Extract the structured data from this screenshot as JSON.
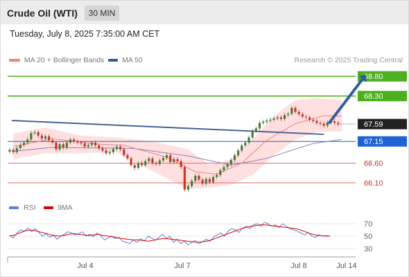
{
  "header": {
    "title": "Crude Oil (WTI)",
    "timeframe": "30 MIN"
  },
  "subheader": {
    "datetime": "Tuesday, July 8, 2025 7:35:00 AM CET"
  },
  "legend": {
    "ma20": "MA 20 + Bollinger Bands",
    "ma50": "MA 50",
    "credit": "Research © 2025 Trading Central"
  },
  "rsi_legend": {
    "rsi": "RSI",
    "ma9": "9MA"
  },
  "colors": {
    "target_line": "#4caf1f",
    "pivot_line": "#2f5d9e",
    "support_line": "#e06666",
    "current_price": "#222222",
    "bollinger_fill": "#ffd9d9",
    "ma20": "#f08080",
    "ma50": "#7a86c2",
    "candle_up": "#4a7a3a",
    "candle_down": "#c0392b",
    "rsi": "#5b7fd6",
    "rsi_ma": "#dd0000"
  },
  "chart_data": {
    "type": "candlestick",
    "instrument": "Crude Oil (WTI)",
    "interval": "30 MIN",
    "y_range": [
      65.75,
      69.05
    ],
    "x_ticks": [
      "Jul 4",
      "Jul 7",
      "Jul 8",
      "Jul 14"
    ],
    "levels": [
      {
        "label": "68.80",
        "value": 68.8,
        "role": "target"
      },
      {
        "label": "68.30",
        "value": 68.3,
        "role": "target"
      },
      {
        "label": "67.59",
        "value": 67.59,
        "role": "current"
      },
      {
        "label": "67.15",
        "value": 67.15,
        "role": "pivot"
      },
      {
        "label": "66.60",
        "value": 66.6,
        "role": "support"
      },
      {
        "label": "66.10",
        "value": 66.1,
        "role": "support"
      }
    ],
    "close_prices": [
      66.94,
      66.88,
      66.98,
      67.06,
      67.12,
      67.2,
      67.36,
      67.38,
      67.3,
      67.22,
      67.28,
      67.18,
      67.12,
      66.95,
      67.08,
      67.0,
      67.12,
      67.2,
      67.15,
      67.12,
      67.1,
      67.02,
      67.06,
      67.12,
      67.05,
      66.98,
      66.92,
      66.85,
      66.88,
      66.96,
      67.02,
      66.95,
      66.8,
      66.72,
      66.55,
      66.48,
      66.6,
      66.55,
      66.65,
      66.72,
      66.6,
      66.58,
      66.67,
      66.73,
      66.8,
      66.63,
      66.7,
      66.65,
      66.5,
      65.93,
      66.02,
      66.15,
      66.28,
      66.18,
      66.08,
      66.2,
      66.12,
      66.25,
      66.3,
      66.42,
      66.5,
      66.57,
      66.68,
      66.8,
      66.92,
      67.05,
      67.12,
      67.25,
      67.42,
      67.48,
      67.62,
      67.65,
      67.68,
      67.7,
      67.73,
      67.76,
      67.72,
      67.82,
      67.85,
      68.0,
      67.9,
      67.84,
      67.78,
      67.76,
      67.7,
      67.67,
      67.62,
      67.6,
      67.55,
      67.63,
      67.66,
      67.62,
      67.59
    ],
    "ma_50_line": [
      [
        1,
        66.9
      ],
      [
        12,
        67.0
      ],
      [
        35,
        66.97
      ],
      [
        50,
        66.78
      ],
      [
        62,
        66.55
      ],
      [
        72,
        66.72
      ],
      [
        85,
        67.1
      ],
      [
        93,
        67.2
      ]
    ],
    "ma_20_line": [
      [
        1,
        67.02
      ],
      [
        12,
        67.22
      ],
      [
        25,
        67.08
      ],
      [
        32,
        67.05
      ],
      [
        44,
        66.75
      ],
      [
        52,
        66.38
      ],
      [
        58,
        66.32
      ],
      [
        65,
        66.6
      ],
      [
        72,
        67.18
      ],
      [
        80,
        67.6
      ],
      [
        88,
        67.8
      ],
      [
        93,
        67.79
      ]
    ],
    "bollinger_upper": [
      [
        1,
        67.35
      ],
      [
        10,
        67.5
      ],
      [
        20,
        67.3
      ],
      [
        30,
        67.25
      ],
      [
        40,
        67.15
      ],
      [
        50,
        66.95
      ],
      [
        56,
        66.55
      ],
      [
        62,
        66.7
      ],
      [
        68,
        67.2
      ],
      [
        74,
        67.8
      ],
      [
        80,
        68.2
      ],
      [
        86,
        68.25
      ],
      [
        93,
        68.2
      ]
    ],
    "bollinger_lower": [
      [
        1,
        66.7
      ],
      [
        10,
        66.85
      ],
      [
        20,
        66.85
      ],
      [
        30,
        66.88
      ],
      [
        40,
        66.4
      ],
      [
        50,
        65.95
      ],
      [
        56,
        65.98
      ],
      [
        62,
        66.05
      ],
      [
        68,
        66.3
      ],
      [
        74,
        66.8
      ],
      [
        80,
        67.2
      ],
      [
        86,
        67.4
      ],
      [
        93,
        67.4
      ]
    ],
    "trendline": [
      [
        1,
        67.68
      ],
      [
        88,
        67.33
      ]
    ],
    "projection_arrow": {
      "from": [
        89,
        67.59
      ],
      "to": [
        100,
        68.8
      ]
    },
    "rsi": {
      "y_ticks": [
        70,
        50,
        30
      ],
      "values": [
        52,
        47,
        55,
        60,
        58,
        63,
        57,
        62,
        56,
        50,
        54,
        48,
        52,
        45,
        50,
        53,
        57,
        55,
        52,
        54,
        57,
        50,
        53,
        49,
        55,
        51,
        44,
        47,
        50,
        46,
        48,
        42,
        40,
        38,
        44,
        40,
        46,
        42,
        50,
        47,
        43,
        48,
        53,
        46,
        50,
        40,
        45,
        38,
        42,
        36,
        40,
        43,
        38,
        41,
        45,
        42,
        48,
        52,
        55,
        50,
        58,
        62,
        60,
        56,
        63,
        66,
        62,
        68,
        70,
        66,
        72,
        70,
        66,
        68,
        64,
        70,
        66,
        62,
        60,
        58,
        55,
        52,
        56,
        50,
        48,
        52,
        50,
        51,
        50
      ],
      "ma9": [
        50,
        52,
        55,
        58,
        60,
        59,
        57,
        55,
        53,
        51,
        50,
        51,
        53,
        54,
        53,
        52,
        51,
        52,
        53,
        51,
        50,
        49,
        47,
        46,
        45,
        44,
        44,
        43,
        42,
        43,
        45,
        46,
        46,
        45,
        44,
        43,
        42,
        41,
        40,
        41,
        42,
        44,
        47,
        50,
        53,
        56,
        59,
        62,
        64,
        66,
        67,
        68,
        68,
        67,
        66,
        65,
        64,
        63,
        62,
        60,
        57,
        54,
        52,
        51,
        50,
        50
      ]
    }
  }
}
